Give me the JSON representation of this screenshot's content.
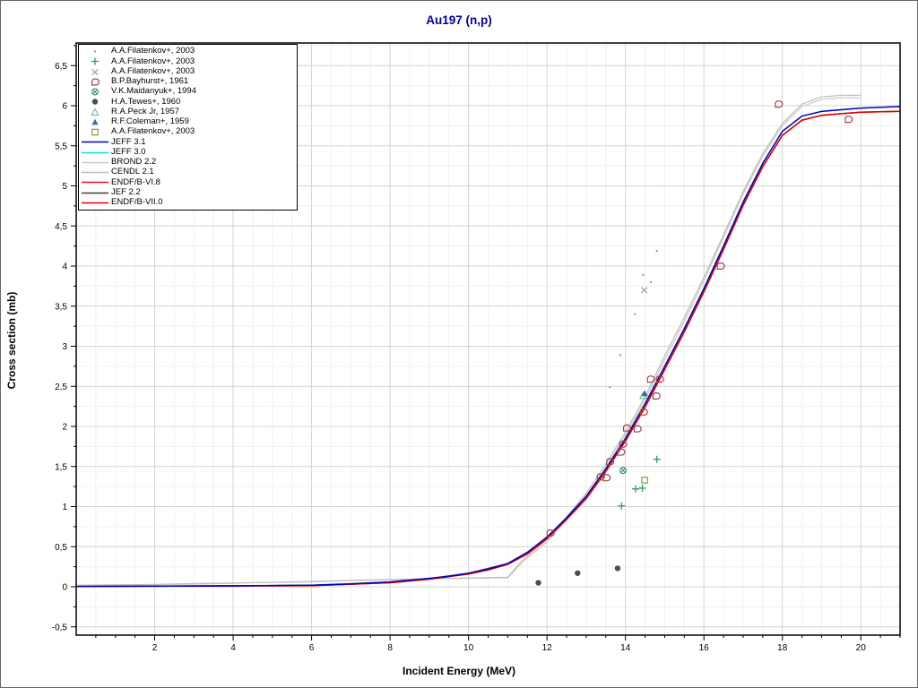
{
  "chart_data": {
    "type": "line+scatter",
    "title": "Au197 (n,p)",
    "title_color": "#0000a0",
    "xlabel": "Incident Energy (MeV)",
    "ylabel": "Cross section (mb)",
    "xlim": [
      0,
      21
    ],
    "ylim": [
      -0.6,
      6.78
    ],
    "grid": "major and minor, light gray, on",
    "legend_position": "top-left",
    "x_minor_step": 0.5,
    "y_minor_step": 0.25,
    "x_ticks": [
      {
        "v": 2,
        "label": "2"
      },
      {
        "v": 4,
        "label": "4"
      },
      {
        "v": 6,
        "label": "6"
      },
      {
        "v": 8,
        "label": "8"
      },
      {
        "v": 10,
        "label": "10"
      },
      {
        "v": 12,
        "label": "12"
      },
      {
        "v": 14,
        "label": "14"
      },
      {
        "v": 16,
        "label": "16"
      },
      {
        "v": 18,
        "label": "18"
      },
      {
        "v": 20,
        "label": "20"
      }
    ],
    "y_ticks": [
      {
        "v": -0.5,
        "label": "-0,5"
      },
      {
        "v": 0,
        "label": "0"
      },
      {
        "v": 0.5,
        "label": "0,5"
      },
      {
        "v": 1,
        "label": "1"
      },
      {
        "v": 1.5,
        "label": "1,5"
      },
      {
        "v": 2,
        "label": "2"
      },
      {
        "v": 2.5,
        "label": "2,5"
      },
      {
        "v": 3,
        "label": "3"
      },
      {
        "v": 3.5,
        "label": "3,5"
      },
      {
        "v": 4,
        "label": "4"
      },
      {
        "v": 4.5,
        "label": "4,5"
      },
      {
        "v": 5,
        "label": "5"
      },
      {
        "v": 5.5,
        "label": "5,5"
      },
      {
        "v": 6,
        "label": "6"
      },
      {
        "v": 6.5,
        "label": "6,5"
      }
    ],
    "scatter": [
      {
        "label": "A.A.Filatenkov+, 2003",
        "marker": "dot",
        "color": "#969696",
        "points": [
          [
            13.6,
            2.49
          ],
          [
            13.87,
            2.89
          ],
          [
            14.24,
            3.4
          ],
          [
            14.45,
            3.89
          ],
          [
            14.65,
            3.8
          ],
          [
            14.8,
            4.19
          ]
        ]
      },
      {
        "label": "A.A.Filatenkov+, 2003",
        "marker": "plus",
        "color": "#2fa25f",
        "points": [
          [
            13.9,
            1.01
          ],
          [
            14.26,
            1.22
          ],
          [
            14.43,
            1.23
          ],
          [
            14.8,
            1.59
          ]
        ]
      },
      {
        "label": "A.A.Filatenkov+, 2003",
        "marker": "x",
        "color": "#9aa39a",
        "points": [
          [
            14.48,
            3.7
          ]
        ]
      },
      {
        "label": "B.P.Bayhurst+, 1961",
        "marker": "dee",
        "color": "#a04545",
        "points": [
          [
            12.08,
            0.67
          ],
          [
            13.36,
            1.37
          ],
          [
            13.51,
            1.36
          ],
          [
            13.6,
            1.56
          ],
          [
            13.88,
            1.68
          ],
          [
            13.93,
            1.78
          ],
          [
            14.03,
            1.98
          ],
          [
            14.3,
            1.97
          ],
          [
            14.46,
            2.18
          ],
          [
            14.64,
            2.59
          ],
          [
            14.78,
            2.38
          ],
          [
            14.87,
            2.59
          ],
          [
            16.42,
            4.0
          ],
          [
            17.9,
            6.02
          ],
          [
            19.68,
            5.83
          ]
        ]
      },
      {
        "label": "V.K.Maidanyuk+, 1994",
        "marker": "circle-x",
        "color": "#2e8b6e",
        "points": [
          [
            13.94,
            1.45
          ]
        ]
      },
      {
        "label": "H.A.Tewes+, 1960",
        "marker": "circle-fill",
        "color": "#41564b",
        "points": [
          [
            11.78,
            0.05
          ],
          [
            12.78,
            0.17
          ],
          [
            13.8,
            0.23
          ]
        ]
      },
      {
        "label": "R.A.Peck Jr, 1957",
        "marker": "tri-open",
        "color": "#6fbf9a",
        "points": [
          [
            14.45,
            2.38
          ]
        ]
      },
      {
        "label": "R.F.Coleman+, 1959",
        "marker": "tri-fill",
        "color": "#3a6ea8",
        "points": [
          [
            14.49,
            2.41
          ]
        ]
      },
      {
        "label": "A.A.Filatenkov+, 2003",
        "marker": "square-open",
        "color": "#869a4d",
        "points": [
          [
            14.49,
            1.33
          ]
        ]
      }
    ],
    "curves": [
      {
        "label": "JEFF 3.1",
        "color": "#0000c4",
        "width": 1.4,
        "points": [
          [
            0,
            0.005
          ],
          [
            4,
            0.01
          ],
          [
            6,
            0.02
          ],
          [
            7,
            0.035
          ],
          [
            8,
            0.06
          ],
          [
            9,
            0.105
          ],
          [
            9.5,
            0.13
          ],
          [
            10,
            0.17
          ],
          [
            10.5,
            0.22
          ],
          [
            11,
            0.29
          ],
          [
            11.5,
            0.43
          ],
          [
            12,
            0.62
          ],
          [
            12.5,
            0.86
          ],
          [
            13,
            1.13
          ],
          [
            13.5,
            1.47
          ],
          [
            14,
            1.85
          ],
          [
            14.5,
            2.28
          ],
          [
            15,
            2.75
          ],
          [
            15.5,
            3.22
          ],
          [
            16,
            3.72
          ],
          [
            16.5,
            4.25
          ],
          [
            17,
            4.8
          ],
          [
            17.5,
            5.28
          ],
          [
            18,
            5.68
          ],
          [
            18.5,
            5.87
          ],
          [
            19,
            5.93
          ],
          [
            19.5,
            5.95
          ],
          [
            20,
            5.97
          ],
          [
            21,
            5.99
          ]
        ]
      },
      {
        "label": "JEFF 3.0",
        "color": "#00e0ee",
        "width": 1.4,
        "points": [
          [
            0,
            0.005
          ],
          [
            4,
            0.01
          ],
          [
            6,
            0.02
          ],
          [
            7,
            0.035
          ],
          [
            8,
            0.06
          ],
          [
            9,
            0.105
          ],
          [
            9.5,
            0.13
          ],
          [
            10,
            0.17
          ],
          [
            10.5,
            0.22
          ],
          [
            11,
            0.29
          ],
          [
            11.5,
            0.43
          ],
          [
            12,
            0.62
          ],
          [
            12.5,
            0.86
          ],
          [
            13,
            1.13
          ],
          [
            13.5,
            1.47
          ],
          [
            14,
            1.85
          ],
          [
            14.5,
            2.28
          ],
          [
            15,
            2.75
          ],
          [
            15.5,
            3.22
          ],
          [
            16,
            3.72
          ],
          [
            16.5,
            4.25
          ],
          [
            17,
            4.8
          ],
          [
            17.5,
            5.28
          ],
          [
            18,
            5.68
          ],
          [
            18.5,
            5.87
          ],
          [
            19,
            5.93
          ],
          [
            19.5,
            5.95
          ],
          [
            20,
            5.97
          ],
          [
            21,
            5.99
          ]
        ]
      },
      {
        "label": "BROND 2.2",
        "color": "#c9c9c9",
        "width": 1.2,
        "points": [
          [
            0.7,
            0.01
          ],
          [
            2,
            0.02
          ],
          [
            2.1,
            0.026
          ],
          [
            2.8,
            0.032
          ],
          [
            4,
            0.042
          ],
          [
            4.6,
            0.052
          ],
          [
            6,
            0.062
          ],
          [
            6.9,
            0.076
          ],
          [
            8,
            0.088
          ],
          [
            9.2,
            0.1
          ],
          [
            11,
            0.112
          ],
          [
            11.4,
            0.32
          ],
          [
            12,
            0.56
          ],
          [
            13,
            1.13
          ],
          [
            13.5,
            1.49
          ],
          [
            14,
            1.89
          ],
          [
            14.5,
            2.33
          ],
          [
            15,
            2.83
          ],
          [
            15.5,
            3.31
          ],
          [
            16,
            3.82
          ],
          [
            16.5,
            4.36
          ],
          [
            17,
            4.9
          ],
          [
            17.5,
            5.37
          ],
          [
            18,
            5.75
          ],
          [
            18.5,
            5.99
          ],
          [
            19,
            6.08
          ],
          [
            19.5,
            6.1
          ],
          [
            20,
            6.1
          ]
        ]
      },
      {
        "label": "CENDL 2.1",
        "color": "#bfbfb7",
        "width": 1.2,
        "points": [
          [
            0,
            0.02
          ],
          [
            1,
            0.025
          ],
          [
            2,
            0.03
          ],
          [
            3,
            0.04
          ],
          [
            4,
            0.047
          ],
          [
            5,
            0.056
          ],
          [
            6,
            0.066
          ],
          [
            7,
            0.08
          ],
          [
            8,
            0.09
          ],
          [
            9,
            0.1
          ],
          [
            10,
            0.11
          ],
          [
            11,
            0.12
          ],
          [
            11.35,
            0.32
          ],
          [
            12,
            0.59
          ],
          [
            12.5,
            0.87
          ],
          [
            13,
            1.17
          ],
          [
            13.5,
            1.53
          ],
          [
            14,
            1.93
          ],
          [
            14.5,
            2.37
          ],
          [
            15,
            2.88
          ],
          [
            15.5,
            3.36
          ],
          [
            16,
            3.86
          ],
          [
            16.5,
            4.39
          ],
          [
            17,
            4.93
          ],
          [
            17.5,
            5.4
          ],
          [
            18,
            5.78
          ],
          [
            18.5,
            6.02
          ],
          [
            19,
            6.11
          ],
          [
            19.5,
            6.13
          ],
          [
            20,
            6.13
          ]
        ]
      },
      {
        "label": "ENDF/B-VI.8",
        "color": "#ee1111",
        "width": 1.5,
        "points": [
          [
            0,
            0.003
          ],
          [
            6,
            0.015
          ],
          [
            8,
            0.05
          ],
          [
            9,
            0.095
          ],
          [
            10,
            0.16
          ],
          [
            10.5,
            0.21
          ],
          [
            11,
            0.28
          ],
          [
            11.5,
            0.41
          ],
          [
            12,
            0.6
          ],
          [
            12.5,
            0.84
          ],
          [
            13,
            1.1
          ],
          [
            13.5,
            1.44
          ],
          [
            14,
            1.82
          ],
          [
            14.5,
            2.24
          ],
          [
            15,
            2.71
          ],
          [
            15.5,
            3.18
          ],
          [
            16,
            3.68
          ],
          [
            16.5,
            4.21
          ],
          [
            17,
            4.76
          ],
          [
            17.5,
            5.24
          ],
          [
            18,
            5.63
          ],
          [
            18.5,
            5.82
          ],
          [
            19,
            5.88
          ],
          [
            19.5,
            5.9
          ],
          [
            20,
            5.92
          ],
          [
            21,
            5.93
          ]
        ]
      },
      {
        "label": "JEF 2.2",
        "color": "#3f3f3f",
        "width": 1.2,
        "points": [
          [
            0,
            0.005
          ],
          [
            6,
            0.02
          ],
          [
            8,
            0.06
          ],
          [
            9,
            0.105
          ],
          [
            10,
            0.17
          ],
          [
            11,
            0.29
          ],
          [
            11.5,
            0.43
          ],
          [
            12,
            0.62
          ],
          [
            12.5,
            0.86
          ],
          [
            13,
            1.13
          ],
          [
            13.5,
            1.47
          ],
          [
            14,
            1.85
          ],
          [
            14.5,
            2.28
          ],
          [
            15,
            2.75
          ],
          [
            15.5,
            3.22
          ],
          [
            16,
            3.72
          ],
          [
            16.5,
            4.25
          ],
          [
            17,
            4.8
          ],
          [
            17.5,
            5.28
          ],
          [
            18,
            5.68
          ],
          [
            18.5,
            5.87
          ],
          [
            19,
            5.93
          ],
          [
            20,
            5.97
          ],
          [
            21,
            5.99
          ]
        ]
      },
      {
        "label": "ENDF/B-VII.0",
        "color": "#dd0000",
        "width": 1.5,
        "points": [
          [
            0,
            0.003
          ],
          [
            6,
            0.015
          ],
          [
            8,
            0.05
          ],
          [
            9,
            0.095
          ],
          [
            10,
            0.16
          ],
          [
            10.5,
            0.21
          ],
          [
            11,
            0.28
          ],
          [
            11.5,
            0.41
          ],
          [
            12,
            0.6
          ],
          [
            12.5,
            0.84
          ],
          [
            13,
            1.1
          ],
          [
            13.5,
            1.44
          ],
          [
            14,
            1.82
          ],
          [
            14.5,
            2.24
          ],
          [
            15,
            2.71
          ],
          [
            15.5,
            3.18
          ],
          [
            16,
            3.68
          ],
          [
            16.5,
            4.21
          ],
          [
            17,
            4.76
          ],
          [
            17.5,
            5.24
          ],
          [
            18,
            5.63
          ],
          [
            18.5,
            5.82
          ],
          [
            19,
            5.88
          ],
          [
            19.5,
            5.9
          ],
          [
            20,
            5.92
          ],
          [
            21,
            5.93
          ]
        ]
      }
    ],
    "curve_draw_order": [
      "BROND 2.2",
      "CENDL 2.1",
      "JEFF 3.0",
      "JEF 2.2",
      "ENDF/B-VI.8",
      "ENDF/B-VII.0",
      "JEFF 3.1"
    ]
  }
}
